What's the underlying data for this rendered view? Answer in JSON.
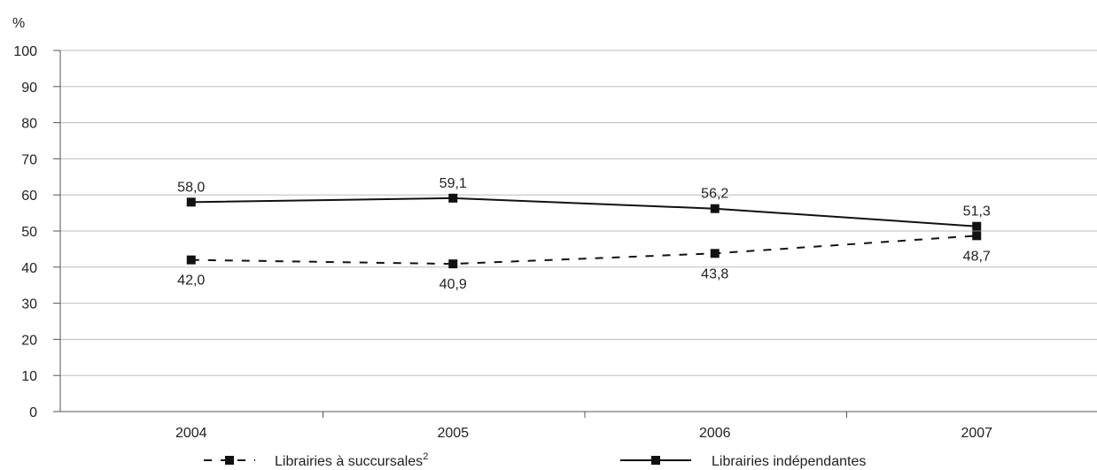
{
  "chart_data": {
    "type": "line",
    "ylabel": "%",
    "ylim": [
      0,
      100
    ],
    "yticks": [
      0,
      10,
      20,
      30,
      40,
      50,
      60,
      70,
      80,
      90,
      100
    ],
    "categories": [
      "2004",
      "2005",
      "2006",
      "2007"
    ],
    "grid": true,
    "legend_position": "bottom",
    "series": [
      {
        "name": "Librairies à succursales",
        "name_superscript": "2",
        "style": "dashed",
        "color": "#111111",
        "values": [
          42.0,
          40.9,
          43.8,
          48.7
        ],
        "labels": [
          "42,0",
          "40,9",
          "43,8",
          "48,7"
        ],
        "label_position": "below"
      },
      {
        "name": "Librairies indépendantes",
        "style": "solid",
        "color": "#111111",
        "values": [
          58.0,
          59.1,
          56.2,
          51.3
        ],
        "labels": [
          "58,0",
          "59,1",
          "56,2",
          "51,3"
        ],
        "label_position": "above"
      }
    ]
  }
}
